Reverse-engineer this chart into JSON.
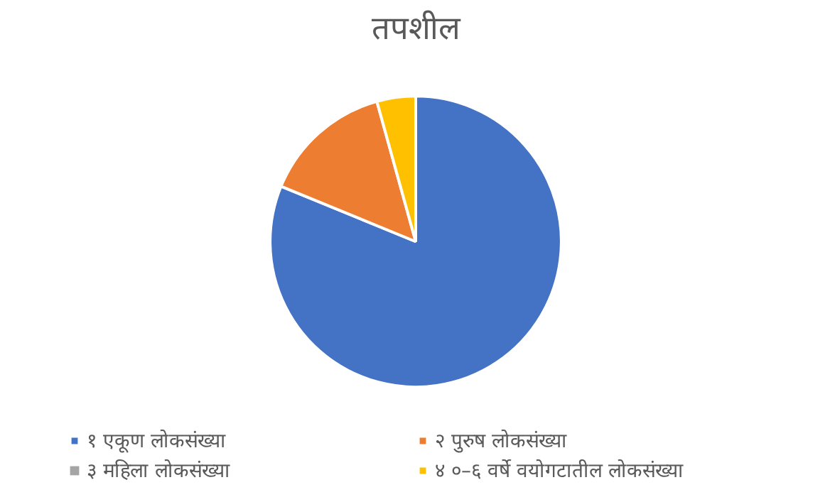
{
  "chart_data": {
    "type": "pie",
    "title": "तपशील",
    "categories": [
      "१ एकूण लोकसंख्या",
      "२ पुरुष लोकसंख्या",
      "३ महिला लोकसंख्या",
      "४ ०–६ वर्षे वयोगटातील लोकसंख्या"
    ],
    "values": [
      81.2,
      14.5,
      0,
      4.3
    ],
    "colors": [
      "#4472c4",
      "#ed7d31",
      "#a5a5a5",
      "#ffc000"
    ],
    "legend": "bottom"
  }
}
